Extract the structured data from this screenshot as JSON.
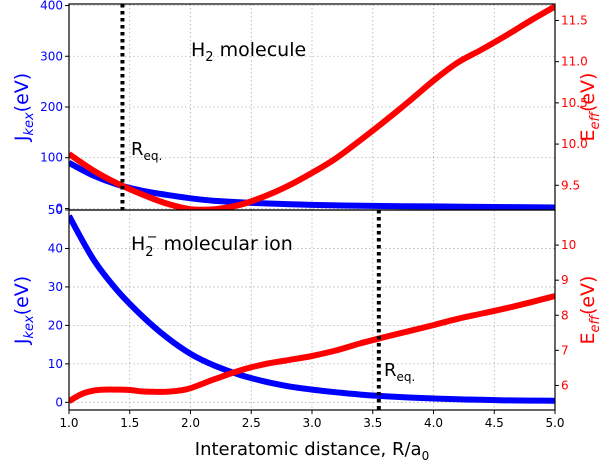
{
  "colors": {
    "blue": "#0000ff",
    "red": "#ff0000",
    "black": "#000000",
    "grid": "#b0b0b0"
  },
  "xlabel": "Interatomic distance, R/a",
  "xlabel_sub": "0",
  "x_ticks": [
    1.0,
    1.5,
    2.0,
    2.5,
    3.0,
    3.5,
    4.0,
    4.5,
    5.0
  ],
  "xlim": [
    1.0,
    5.0
  ],
  "chart_data": [
    {
      "type": "line",
      "panel": "top",
      "annotation": {
        "pre": "H",
        "sub": "2",
        "post": " molecule"
      },
      "ylabel_left": {
        "main": "J",
        "sub": "kex",
        "post": "(eV)"
      },
      "ylabel_right": {
        "main": "E",
        "sub": "eff",
        "post": "(eV)"
      },
      "left_ylim": [
        -3,
        403
      ],
      "right_ylim": [
        9.2,
        11.7
      ],
      "left_ticks": [
        0,
        100,
        200,
        300,
        400
      ],
      "right_ticks": [
        9.5,
        10.0,
        10.5,
        11.0,
        11.5
      ],
      "req": {
        "x": 1.44,
        "label_main": "R",
        "label_sub": "eq."
      },
      "grid": true,
      "series": [
        {
          "axis": "left",
          "color": "#0000ff",
          "x": [
            1.0,
            1.2,
            1.4,
            1.6,
            1.8,
            2.0,
            2.2,
            2.5,
            3.0,
            3.5,
            4.0,
            4.5,
            5.0
          ],
          "values": [
            90,
            65,
            47,
            35,
            27,
            20,
            15,
            11,
            7,
            5,
            4,
            3,
            2
          ]
        },
        {
          "axis": "right",
          "color": "#ff0000",
          "x": [
            1.0,
            1.2,
            1.4,
            1.6,
            1.8,
            2.0,
            2.2,
            2.4,
            2.6,
            2.8,
            3.0,
            3.2,
            3.4,
            3.6,
            3.8,
            4.0,
            4.2,
            4.4,
            4.6,
            4.8,
            5.0
          ],
          "values": [
            9.88,
            9.68,
            9.52,
            9.39,
            9.28,
            9.21,
            9.21,
            9.26,
            9.36,
            9.49,
            9.65,
            9.83,
            10.05,
            10.28,
            10.52,
            10.77,
            10.99,
            11.15,
            11.32,
            11.5,
            11.67
          ]
        }
      ]
    },
    {
      "type": "line",
      "panel": "bottom",
      "annotation": {
        "pre": "H",
        "sub": "2",
        "sup": "−",
        "post": " molecular ion"
      },
      "ylabel_left": {
        "main": "J",
        "sub": "kex",
        "post": "(eV)"
      },
      "ylabel_right": {
        "main": "E",
        "sub": "eff",
        "post": "(eV)"
      },
      "left_ylim": [
        -2,
        50
      ],
      "right_ylim": [
        5.3,
        11.0
      ],
      "left_ticks": [
        0,
        10,
        20,
        30,
        40,
        50
      ],
      "right_ticks": [
        6,
        7,
        8,
        9,
        10
      ],
      "req": {
        "x": 3.55,
        "label_main": "R",
        "label_sub": "eq."
      },
      "grid": true,
      "series": [
        {
          "axis": "left",
          "color": "#0000ff",
          "x": [
            1.0,
            1.2,
            1.4,
            1.6,
            1.8,
            2.0,
            2.2,
            2.4,
            2.6,
            2.8,
            3.0,
            3.2,
            3.4,
            3.6,
            3.8,
            4.0,
            4.2,
            4.4,
            4.6,
            4.8,
            5.0
          ],
          "values": [
            48.5,
            37.2,
            29.0,
            22.5,
            17.0,
            12.6,
            9.5,
            7.2,
            5.5,
            4.2,
            3.3,
            2.6,
            2.0,
            1.6,
            1.25,
            1.0,
            0.8,
            0.65,
            0.5,
            0.45,
            0.4
          ]
        },
        {
          "axis": "right",
          "color": "#ff0000",
          "x": [
            1.0,
            1.1,
            1.2,
            1.3,
            1.4,
            1.5,
            1.6,
            1.7,
            1.8,
            1.9,
            2.0,
            2.2,
            2.4,
            2.6,
            2.8,
            3.0,
            3.2,
            3.4,
            3.6,
            3.8,
            4.0,
            4.2,
            4.4,
            4.6,
            4.8,
            5.0
          ],
          "values": [
            5.55,
            5.75,
            5.85,
            5.88,
            5.88,
            5.87,
            5.83,
            5.82,
            5.82,
            5.85,
            5.92,
            6.18,
            6.42,
            6.6,
            6.72,
            6.84,
            7.0,
            7.2,
            7.38,
            7.55,
            7.72,
            7.9,
            8.05,
            8.2,
            8.37,
            8.55
          ]
        }
      ]
    }
  ]
}
